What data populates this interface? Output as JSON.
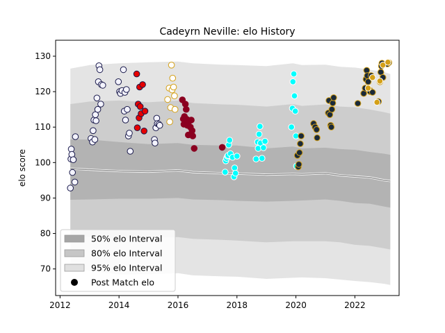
{
  "chart_data": {
    "type": "scatter",
    "title": "Cadeyrn Neville: elo History",
    "xlabel": "",
    "ylabel": "elo score",
    "xlim": [
      2011.85,
      2023.5
    ],
    "ylim": [
      62.5,
      134.5
    ],
    "x_ticks": [
      2012,
      2014,
      2016,
      2018,
      2020,
      2022
    ],
    "y_ticks": [
      70,
      80,
      90,
      100,
      110,
      120,
      130
    ],
    "legend_position": "lower-left",
    "legend": [
      {
        "label": "50% elo Interval",
        "kind": "band50"
      },
      {
        "label": "80% elo Interval",
        "kind": "band80"
      },
      {
        "label": "95% elo Interval",
        "kind": "band95"
      },
      {
        "label": "Post Match elo",
        "kind": "marker"
      }
    ],
    "bands": {
      "x": [
        2012.35,
        2013.0,
        2014.0,
        2015.0,
        2016.0,
        2016.5,
        2017.5,
        2018.0,
        2019.0,
        2019.9,
        2020.2,
        2021.0,
        2021.5,
        2022.0,
        2022.5,
        2023.0,
        2023.2
      ],
      "mean": [
        98.3,
        98.0,
        97.6,
        97.4,
        97.8,
        97.3,
        97.0,
        96.9,
        96.6,
        96.8,
        96.7,
        97.0,
        96.4,
        96.1,
        95.8,
        95.0,
        94.8
      ],
      "p50_hi": [
        106.5,
        106.5,
        105.8,
        105.2,
        105.5,
        105.0,
        104.8,
        104.8,
        104.0,
        104.5,
        104.0,
        104.2,
        103.8,
        103.6,
        103.0,
        102.5,
        102.2
      ],
      "p50_lo": [
        89.5,
        89.6,
        89.8,
        89.8,
        90.0,
        89.6,
        89.4,
        89.2,
        89.0,
        89.2,
        89.3,
        89.6,
        89.2,
        88.6,
        88.4,
        87.6,
        87.3
      ],
      "p80_hi": [
        116.5,
        117.2,
        117.5,
        117.0,
        117.5,
        116.8,
        116.4,
        116.3,
        115.8,
        116.5,
        116.0,
        116.4,
        115.8,
        115.6,
        115.0,
        114.2,
        113.8
      ],
      "p80_lo": [
        79.5,
        79.0,
        78.6,
        78.8,
        79.0,
        78.5,
        78.2,
        78.0,
        77.5,
        77.8,
        77.8,
        77.8,
        77.5,
        76.8,
        76.5,
        75.8,
        75.5
      ],
      "p95_hi": [
        126.5,
        127.5,
        128.0,
        128.3,
        128.5,
        128.0,
        127.6,
        127.5,
        127.2,
        128.0,
        127.5,
        127.6,
        127.0,
        126.8,
        126.2,
        125.5,
        125.0
      ],
      "p95_lo": [
        70.5,
        69.5,
        68.4,
        68.5,
        68.8,
        68.2,
        67.9,
        67.8,
        67.2,
        67.5,
        67.6,
        67.4,
        67.0,
        66.6,
        66.3,
        65.8,
        65.5
      ]
    },
    "series": [
      {
        "color": "#f4f4ff",
        "edge": "#1a1a4a",
        "points": [
          [
            2012.35,
            92.8
          ],
          [
            2012.37,
            101.0
          ],
          [
            2012.38,
            103.8
          ],
          [
            2012.4,
            102.3
          ],
          [
            2012.42,
            97.2
          ],
          [
            2012.45,
            100.8
          ],
          [
            2012.5,
            94.5
          ],
          [
            2012.52,
            107.3
          ],
          [
            2013.05,
            106.8
          ],
          [
            2013.1,
            105.8
          ],
          [
            2013.12,
            109.0
          ],
          [
            2013.15,
            112.0
          ],
          [
            2013.18,
            106.5
          ],
          [
            2013.2,
            113.5
          ],
          [
            2013.22,
            111.8
          ],
          [
            2013.25,
            118.2
          ],
          [
            2013.28,
            115.0
          ],
          [
            2013.3,
            122.8
          ],
          [
            2013.32,
            127.3
          ],
          [
            2013.35,
            126.2
          ],
          [
            2013.38,
            116.5
          ],
          [
            2013.4,
            122.0
          ],
          [
            2013.45,
            121.8
          ],
          [
            2013.98,
            122.8
          ],
          [
            2014.02,
            120.0
          ],
          [
            2014.05,
            119.5
          ],
          [
            2014.1,
            120.3
          ],
          [
            2014.15,
            126.2
          ],
          [
            2014.18,
            114.5
          ],
          [
            2014.2,
            119.8
          ],
          [
            2014.22,
            112.0
          ],
          [
            2014.25,
            120.6
          ],
          [
            2014.28,
            115.0
          ],
          [
            2014.32,
            107.5
          ],
          [
            2014.35,
            108.3
          ],
          [
            2014.38,
            103.2
          ]
        ]
      },
      {
        "color": "#e60000",
        "edge": "#1a1a4a",
        "points": [
          [
            2014.6,
            125.0
          ],
          [
            2014.62,
            109.8
          ],
          [
            2014.65,
            116.5
          ],
          [
            2014.68,
            112.6
          ],
          [
            2014.7,
            121.3
          ],
          [
            2014.72,
            115.8
          ],
          [
            2014.75,
            113.8
          ],
          [
            2014.8,
            122.0
          ],
          [
            2014.85,
            108.9
          ],
          [
            2014.88,
            114.5
          ]
        ]
      },
      {
        "color": "#f4f4ff",
        "edge": "#1a1a4a",
        "points": [
          [
            2015.2,
            106.5
          ],
          [
            2015.22,
            105.5
          ],
          [
            2015.25,
            109.8
          ],
          [
            2015.28,
            112.5
          ],
          [
            2015.3,
            111.0
          ],
          [
            2015.35,
            110.8
          ],
          [
            2015.38,
            110.5
          ]
        ]
      },
      {
        "color": "#ffffff",
        "edge": "#d4a017",
        "points": [
          [
            2015.65,
            117.8
          ],
          [
            2015.7,
            121.0
          ],
          [
            2015.72,
            111.5
          ],
          [
            2015.75,
            115.5
          ],
          [
            2015.78,
            127.5
          ],
          [
            2015.8,
            120.5
          ],
          [
            2015.82,
            123.8
          ],
          [
            2015.85,
            121.3
          ],
          [
            2015.88,
            118.8
          ],
          [
            2015.9,
            115.0
          ]
        ]
      },
      {
        "color": "#8b0020",
        "edge": "#8b0020",
        "points": [
          [
            2016.15,
            117.7
          ],
          [
            2016.18,
            112.3
          ],
          [
            2016.2,
            110.8
          ],
          [
            2016.22,
            113.0
          ],
          [
            2016.25,
            116.5
          ],
          [
            2016.28,
            115.0
          ],
          [
            2016.3,
            112.2
          ],
          [
            2016.32,
            110.5
          ],
          [
            2016.35,
            107.8
          ],
          [
            2016.4,
            111.8
          ],
          [
            2016.42,
            110.0
          ],
          [
            2016.45,
            112.0
          ],
          [
            2016.48,
            109.0
          ],
          [
            2016.5,
            107.5
          ],
          [
            2016.55,
            104.0
          ],
          [
            2017.5,
            104.3
          ]
        ]
      },
      {
        "color": "#00ffff",
        "edge": "#ffffff",
        "points": [
          [
            2017.6,
            97.3
          ],
          [
            2017.62,
            100.5
          ],
          [
            2017.65,
            101.2
          ],
          [
            2017.68,
            101.8
          ],
          [
            2017.7,
            102.0
          ],
          [
            2017.72,
            105.0
          ],
          [
            2017.75,
            106.3
          ],
          [
            2017.78,
            102.5
          ],
          [
            2017.85,
            101.5
          ],
          [
            2017.9,
            96.0
          ],
          [
            2017.92,
            98.5
          ],
          [
            2017.95,
            97.0
          ],
          [
            2018.0,
            101.8
          ],
          [
            2018.65,
            101.0
          ],
          [
            2018.7,
            105.8
          ],
          [
            2018.72,
            104.0
          ],
          [
            2018.75,
            108.0
          ],
          [
            2018.78,
            110.2
          ],
          [
            2018.8,
            105.5
          ],
          [
            2018.85,
            101.2
          ],
          [
            2018.9,
            104.2
          ],
          [
            2018.95,
            106.0
          ]
        ]
      },
      {
        "color": "#00ffff",
        "edge": "#ffffff",
        "points": [
          [
            2019.85,
            110.0
          ],
          [
            2019.88,
            115.3
          ],
          [
            2019.9,
            122.8
          ],
          [
            2019.93,
            125.0
          ],
          [
            2019.95,
            118.8
          ],
          [
            2019.98,
            114.5
          ],
          [
            2020.0,
            107.5
          ],
          [
            2020.02,
            99.0
          ]
        ]
      },
      {
        "color": "#1a2a3a",
        "edge": "#d4a017",
        "points": [
          [
            2020.05,
            102.0
          ],
          [
            2020.08,
            98.8
          ],
          [
            2020.1,
            99.5
          ],
          [
            2020.12,
            102.8
          ],
          [
            2020.15,
            105.3
          ],
          [
            2020.18,
            107.5
          ],
          [
            2020.6,
            111.0
          ],
          [
            2020.65,
            110.0
          ],
          [
            2020.7,
            109.3
          ],
          [
            2020.72,
            107.0
          ],
          [
            2021.1,
            114.0
          ],
          [
            2021.12,
            117.5
          ],
          [
            2021.15,
            113.5
          ],
          [
            2021.18,
            110.5
          ],
          [
            2021.2,
            110.0
          ],
          [
            2021.22,
            115.0
          ],
          [
            2021.25,
            116.8
          ],
          [
            2021.28,
            118.3
          ]
        ]
      },
      {
        "color": "#1a2a3a",
        "edge": "#d4a017",
        "points": [
          [
            2022.1,
            116.7
          ],
          [
            2022.3,
            119.5
          ],
          [
            2022.35,
            121.0
          ],
          [
            2022.38,
            123.5
          ],
          [
            2022.4,
            126.0
          ],
          [
            2022.42,
            124.5
          ],
          [
            2022.45,
            122.8
          ],
          [
            2022.5,
            120.5
          ],
          [
            2022.52,
            120.0
          ],
          [
            2022.55,
            124.5
          ],
          [
            2022.6,
            119.8
          ],
          [
            2022.8,
            117.2
          ],
          [
            2022.85,
            122.8
          ],
          [
            2022.88,
            125.5
          ],
          [
            2022.9,
            127.2
          ],
          [
            2022.92,
            128.0
          ],
          [
            2022.95,
            124.0
          ],
          [
            2023.1,
            127.8
          ],
          [
            2023.15,
            128.2
          ]
        ]
      },
      {
        "color": "#d4a017",
        "edge": "#ffffff",
        "points": [
          [
            2022.45,
            121.0
          ],
          [
            2022.6,
            124.0
          ],
          [
            2022.75,
            117.0
          ],
          [
            2022.85,
            123.0
          ],
          [
            2022.95,
            127.5
          ],
          [
            2023.12,
            128.3
          ]
        ]
      }
    ]
  }
}
